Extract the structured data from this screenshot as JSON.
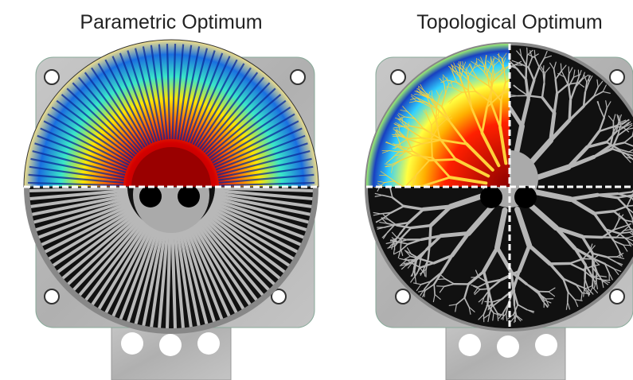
{
  "left": {
    "title": "Parametric Optimum"
  },
  "right": {
    "title": "Topological Optimum"
  }
}
